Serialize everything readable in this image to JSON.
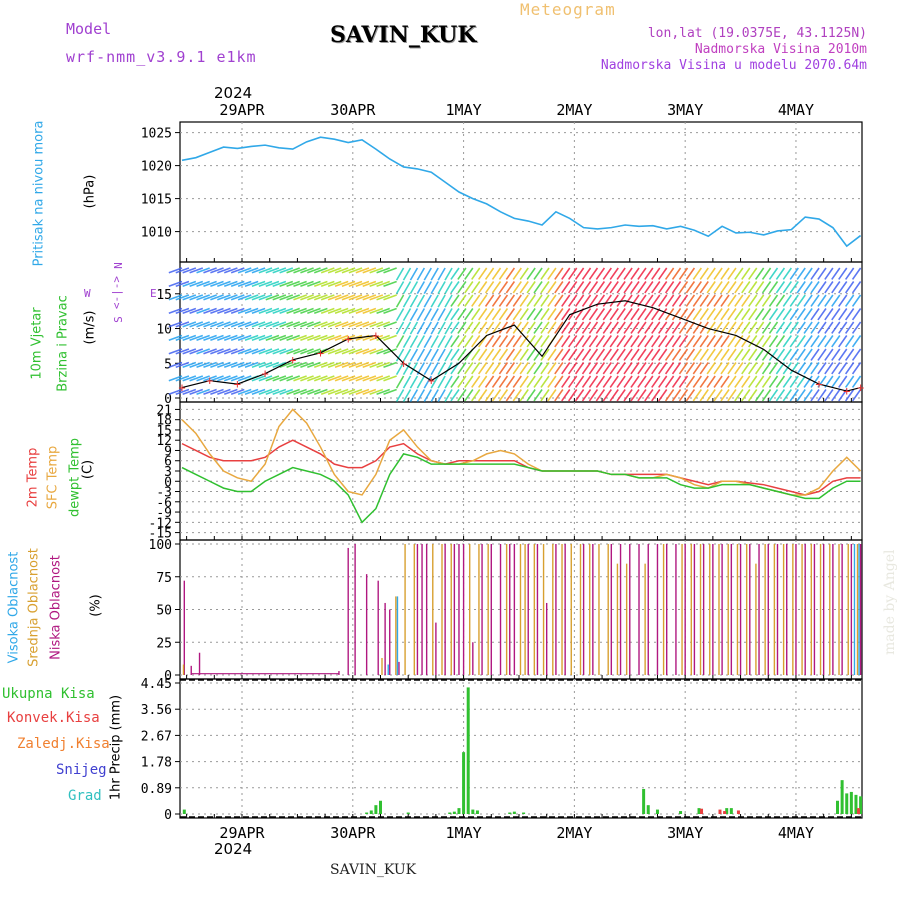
{
  "header": {
    "station": "SAVIN_KUK",
    "meteogram": "Meteogram",
    "model_label": "Model",
    "model_name": "wrf-nmm_v3.9.1  e1km",
    "lonlat": "lon,lat (19.0375E, 43.1125N)",
    "elevation": "Nadmorska Visina 2010m",
    "elevation_model": "Nadmorska Visina u modelu 2070.64m",
    "footer_station": "SAVIN_KUK",
    "watermark": "made by Angel",
    "year": "2024"
  },
  "days": [
    "29APR",
    "30APR",
    "1MAY",
    "2MAY",
    "3MAY",
    "4MAY"
  ],
  "colors": {
    "pressure": "#30a8e8",
    "temp2m": "#e84040",
    "sfc": "#e8a840",
    "dewpt": "#30c030",
    "high_cloud": "#30a8e8",
    "mid_cloud": "#d8a030",
    "low_cloud": "#b01880",
    "total_precip": "#30c030",
    "conv_precip": "#e84040",
    "frozen_precip": "#f08030",
    "snow": "#4040d0",
    "hail": "#30c0c0"
  },
  "labels": {
    "pressure": [
      "Pritisak na nivou mora",
      "(hPa)"
    ],
    "wind": [
      "10m Vjetar",
      "Brzina i Pravac",
      "(m/s)"
    ],
    "compass": [
      "N",
      "<-|->",
      "E",
      "W",
      "S"
    ],
    "temp": [
      "2m Temp",
      "SFC Temp",
      "dewpt Temp",
      "(C)"
    ],
    "cloud": [
      "Visoka Oblacnost",
      "Srednja Oblacnost",
      "Niska Oblacnost",
      "(%)"
    ],
    "precip_legend": [
      "Ukupna Kisa",
      "Konvek.Kisa",
      "Zaledj.Kisa",
      "Snijeg",
      "Grad"
    ],
    "precip_axis": "1hr Precip (mm)"
  },
  "chart_data": [
    {
      "type": "line",
      "name": "pressure",
      "ylim": [
        1006,
        1026
      ],
      "yticks": [
        1010,
        1015,
        1020,
        1025
      ],
      "x": [
        0,
        3,
        6,
        9,
        12,
        15,
        18,
        21,
        24,
        27,
        30,
        33,
        36,
        39,
        42,
        45,
        48,
        51,
        54,
        57,
        60,
        63,
        66,
        69,
        72,
        75,
        78,
        81,
        84,
        87,
        90,
        93,
        96,
        99,
        102,
        105,
        108,
        111,
        114,
        117,
        120,
        123,
        126,
        129,
        132,
        135,
        138,
        141,
        144,
        147
      ],
      "values": [
        1020.8,
        1021.2,
        1022.0,
        1022.8,
        1022.6,
        1022.9,
        1023.1,
        1022.7,
        1022.5,
        1023.6,
        1024.3,
        1024.0,
        1023.5,
        1023.9,
        1022.5,
        1021.0,
        1019.8,
        1019.5,
        1019.0,
        1017.5,
        1016.0,
        1015.0,
        1014.2,
        1013.0,
        1012.0,
        1011.6,
        1011.0,
        1013.0,
        1012.0,
        1010.6,
        1010.4,
        1010.6,
        1011.0,
        1010.8,
        1010.9,
        1010.4,
        1010.8,
        1010.2,
        1009.3,
        1010.8,
        1009.8,
        1009.9,
        1009.5,
        1010.1,
        1010.3,
        1012.2,
        1011.9,
        1010.6,
        1007.8,
        1009.4
      ]
    },
    {
      "type": "line",
      "name": "wind_speed",
      "ylim": [
        0,
        19
      ],
      "yticks": [
        0,
        5,
        10,
        15
      ],
      "x": [
        0,
        6,
        12,
        18,
        24,
        30,
        36,
        42,
        48,
        54,
        60,
        66,
        72,
        78,
        84,
        90,
        96,
        102,
        108,
        114,
        120,
        126,
        132,
        138,
        144,
        147
      ],
      "values": [
        1.5,
        2.5,
        2.0,
        3.5,
        5.5,
        6.5,
        8.5,
        9.0,
        5.0,
        2.5,
        5.0,
        9.0,
        10.5,
        6.0,
        12.0,
        13.5,
        14.0,
        13.0,
        11.5,
        10.0,
        9.0,
        7.0,
        4.0,
        2.0,
        1.0,
        1.5
      ]
    },
    {
      "type": "line",
      "name": "temperature",
      "ylim": [
        -16,
        22
      ],
      "yticks": [
        -15,
        -12,
        -9,
        -6,
        -3,
        0,
        3,
        6,
        9,
        12,
        15,
        18,
        21
      ],
      "x": [
        0,
        3,
        6,
        9,
        12,
        15,
        18,
        21,
        24,
        27,
        30,
        33,
        36,
        39,
        42,
        45,
        48,
        51,
        54,
        57,
        60,
        63,
        66,
        69,
        72,
        75,
        78,
        81,
        84,
        87,
        90,
        93,
        96,
        99,
        102,
        105,
        108,
        111,
        114,
        117,
        120,
        123,
        126,
        129,
        132,
        135,
        138,
        141,
        144,
        147
      ],
      "series": [
        {
          "name": "2m Temp",
          "values": [
            11,
            9,
            7,
            6,
            6,
            6,
            7,
            10,
            12,
            10,
            8,
            5,
            4,
            4,
            6,
            10,
            11,
            8,
            6,
            5,
            6,
            6,
            6,
            6,
            6,
            4,
            3,
            3,
            3,
            3,
            3,
            2,
            2,
            2,
            2,
            2,
            1,
            0,
            -1,
            0,
            0,
            -0.5,
            -1,
            -2,
            -3,
            -4,
            -3,
            0,
            1,
            1
          ]
        },
        {
          "name": "SFC Temp",
          "values": [
            18,
            14,
            8,
            3,
            1,
            0,
            5,
            16,
            21,
            17,
            10,
            2,
            -3,
            -4,
            2,
            12,
            15,
            10,
            6,
            5,
            5,
            6,
            8,
            9,
            8,
            5,
            3,
            3,
            3,
            3,
            3,
            2,
            2,
            1,
            1,
            2,
            1,
            -1,
            -2,
            0,
            0,
            -1,
            -2,
            -3,
            -4,
            -4,
            -2,
            3,
            7,
            3
          ]
        },
        {
          "name": "dewpt Temp",
          "values": [
            4,
            2,
            0,
            -2,
            -3,
            -3,
            0,
            2,
            4,
            3,
            2,
            0,
            -4,
            -12,
            -8,
            2,
            8,
            7,
            5,
            5,
            5,
            5,
            5,
            5,
            5,
            4,
            3,
            3,
            3,
            3,
            3,
            2,
            2,
            1,
            1,
            1,
            -1,
            -2,
            -2,
            -1,
            -1,
            -1,
            -2,
            -3,
            -4,
            -5,
            -5,
            -2,
            0,
            0
          ]
        }
      ]
    },
    {
      "type": "bar",
      "name": "cloud_cover",
      "ylim": [
        0,
        100
      ],
      "yticks": [
        0,
        25,
        50,
        75,
        100
      ],
      "series": [
        {
          "name": "Niska Oblacnost",
          "x": [
            0.5,
            2,
            3.8,
            34,
            36,
            37.5,
            40,
            42.5,
            44,
            45,
            47,
            51,
            52,
            53,
            55,
            57,
            59,
            60,
            61,
            63,
            65,
            67,
            69,
            71,
            72,
            75,
            77,
            79,
            81,
            83,
            87,
            89,
            93,
            95,
            97,
            99,
            101,
            103,
            105,
            107,
            109,
            111,
            113,
            115,
            117,
            119,
            121,
            123,
            125,
            127,
            129,
            131,
            133,
            135,
            137,
            139,
            141,
            143,
            145,
            147
          ],
          "values": [
            72,
            7,
            17,
            3,
            97,
            100,
            77,
            72,
            55,
            50,
            10,
            100,
            100,
            100,
            40,
            100,
            100,
            100,
            100,
            25,
            100,
            100,
            100,
            100,
            100,
            100,
            100,
            55,
            100,
            100,
            100,
            100,
            100,
            100,
            100,
            100,
            100,
            100,
            100,
            100,
            100,
            100,
            100,
            100,
            100,
            100,
            100,
            100,
            100,
            100,
            100,
            100,
            100,
            100,
            100,
            100,
            100,
            100,
            100,
            100
          ]
        },
        {
          "name": "Srednja Oblacnost",
          "x": [
            0,
            43,
            46,
            48,
            50,
            54,
            56,
            58,
            62,
            64,
            66,
            70,
            73,
            74,
            76,
            78,
            80,
            82,
            84,
            86,
            88,
            90,
            92,
            94,
            96,
            100,
            104,
            108,
            110,
            112,
            114,
            116,
            118,
            120,
            122,
            124,
            126,
            128,
            130,
            132,
            134,
            136,
            138,
            140,
            142,
            144,
            146
          ],
          "values": [
            8,
            13,
            60,
            100,
            100,
            100,
            100,
            100,
            100,
            100,
            100,
            100,
            100,
            100,
            100,
            100,
            100,
            100,
            100,
            100,
            100,
            100,
            100,
            85,
            85,
            85,
            100,
            100,
            100,
            100,
            100,
            100,
            100,
            100,
            100,
            85,
            100,
            100,
            100,
            100,
            100,
            100,
            100,
            100,
            100,
            100,
            100
          ]
        },
        {
          "name": "Visoka Oblacnost",
          "x": [
            45,
            47,
            90,
            146,
            147
          ],
          "values": [
            8,
            60,
            0,
            100,
            100
          ]
        }
      ]
    },
    {
      "type": "bar",
      "name": "precipitation",
      "ylim": [
        0,
        4.45
      ],
      "yticks": [
        0,
        0.89,
        1.78,
        2.67,
        3.56,
        4.45
      ],
      "series": [
        {
          "name": "Ukupna Kisa",
          "x": [
            0.5,
            40,
            41,
            42,
            43,
            49,
            58,
            59,
            60,
            61,
            62,
            63,
            64,
            71,
            72,
            74,
            100,
            101,
            103,
            108,
            112,
            118,
            119,
            142,
            143,
            144,
            145,
            146,
            147
          ],
          "values": [
            0.15,
            0.05,
            0.12,
            0.3,
            0.45,
            0.05,
            0.05,
            0.08,
            0.2,
            2.1,
            4.3,
            0.15,
            0.12,
            0.05,
            0.08,
            0.05,
            0.85,
            0.3,
            0.15,
            0.1,
            0.2,
            0.2,
            0.2,
            0.45,
            1.15,
            0.7,
            0.75,
            0.65,
            0.6
          ]
        },
        {
          "name": "Konvek.Kisa",
          "x": [
            112,
            116,
            117,
            120,
            146
          ],
          "values": [
            0.18,
            0.15,
            0.1,
            0.12,
            0.2
          ]
        }
      ]
    }
  ]
}
